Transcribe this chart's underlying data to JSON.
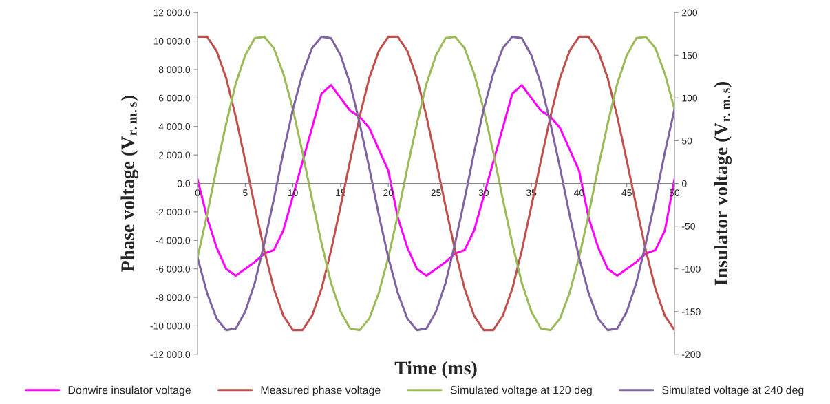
{
  "chart_data": {
    "type": "line",
    "xlabel": "Time (ms)",
    "ylabel": "Phase voltage (V$_{r.m.s}$)",
    "y2label": "Insulator voltage (V$_{r.m.s}$)",
    "x": [
      0,
      1,
      2,
      3,
      4,
      5,
      6,
      7,
      8,
      9,
      10,
      11,
      12,
      13,
      14,
      15,
      16,
      17,
      18,
      19,
      20,
      21,
      22,
      23,
      24,
      25,
      26,
      27,
      28,
      29,
      30,
      31,
      32,
      33,
      34,
      35,
      36,
      37,
      38,
      39,
      40,
      41,
      42,
      43,
      44,
      45,
      46,
      47,
      48,
      49,
      50
    ],
    "series": [
      {
        "name": "Donwire insulator voltage",
        "color": "#ff00ff",
        "axis": "y2",
        "values": [
          5,
          -40,
          -75,
          -100,
          -108,
          -100,
          -92,
          -82,
          -78,
          -55,
          -15,
          25,
          65,
          105,
          115,
          100,
          85,
          78,
          65,
          40,
          15,
          -40,
          -75,
          -100,
          -108,
          -100,
          -92,
          -82,
          -78,
          -55,
          -15,
          25,
          65,
          105,
          115,
          100,
          85,
          78,
          65,
          40,
          15,
          -40,
          -75,
          -100,
          -108,
          -100,
          -92,
          -82,
          -78,
          -55,
          5
        ]
      },
      {
        "name": "Measured phase voltage",
        "color": "#c0504d",
        "values": [
          10300,
          10300,
          9300,
          7400,
          4700,
          1600,
          -1600,
          -4700,
          -7400,
          -9300,
          -10300,
          -10300,
          -9300,
          -7400,
          -4700,
          -1600,
          1600,
          4700,
          7400,
          9300,
          10300,
          10300,
          9300,
          7400,
          4700,
          1600,
          -1600,
          -4700,
          -7400,
          -9300,
          -10300,
          -10300,
          -9300,
          -7400,
          -4700,
          -1600,
          1600,
          4700,
          7400,
          9300,
          10300,
          10300,
          9300,
          7400,
          4700,
          1600,
          -1600,
          -4700,
          -7400,
          -9300,
          -10300
        ]
      },
      {
        "name": "Simulated voltage at 120 deg",
        "color": "#9bbb59",
        "values": [
          -5200,
          -2200,
          1100,
          4200,
          7000,
          9000,
          10200,
          10300,
          9500,
          7700,
          5200,
          2200,
          -1100,
          -4200,
          -7000,
          -9000,
          -10200,
          -10300,
          -9500,
          -7700,
          -5200,
          -2200,
          1100,
          4200,
          7000,
          9000,
          10200,
          10300,
          9500,
          7700,
          5200,
          2200,
          -1100,
          -4200,
          -7000,
          -9000,
          -10200,
          -10300,
          -9500,
          -7700,
          -5200,
          -2200,
          1100,
          4200,
          7000,
          9000,
          10200,
          10300,
          9500,
          7700,
          5200
        ]
      },
      {
        "name": "Simulated voltage at 240 deg",
        "color": "#8064a2",
        "values": [
          -5200,
          -7700,
          -9500,
          -10300,
          -10200,
          -9000,
          -7000,
          -4200,
          -1100,
          2200,
          5200,
          7700,
          9500,
          10300,
          10200,
          9000,
          7000,
          4200,
          1100,
          -2200,
          -5200,
          -7700,
          -9500,
          -10300,
          -10200,
          -9000,
          -7000,
          -4200,
          -1100,
          2200,
          5200,
          7700,
          9500,
          10300,
          10200,
          9000,
          7000,
          4200,
          1100,
          -2200,
          -5200,
          -7700,
          -9500,
          -10300,
          -10200,
          -9000,
          -7000,
          -4200,
          -1100,
          2200,
          5200
        ]
      }
    ],
    "xlim": [
      0,
      50
    ],
    "xticks": [
      0,
      5,
      10,
      15,
      20,
      25,
      30,
      35,
      40,
      45,
      50
    ],
    "ylim": [
      -12000,
      12000
    ],
    "yticks": [
      {
        "value": -12000,
        "label": "-12 000.0"
      },
      {
        "value": -10000,
        "label": "-10 000.0"
      },
      {
        "value": -8000,
        "label": "-8 000.0"
      },
      {
        "value": -6000,
        "label": "-6 000.0"
      },
      {
        "value": -4000,
        "label": "-4 000.0"
      },
      {
        "value": -2000,
        "label": "-2 000.0"
      },
      {
        "value": 0,
        "label": "0.0"
      },
      {
        "value": 2000,
        "label": "2 000.0"
      },
      {
        "value": 4000,
        "label": "4 000.0"
      },
      {
        "value": 6000,
        "label": "6 000.0"
      },
      {
        "value": 8000,
        "label": "8 000.0"
      },
      {
        "value": 10000,
        "label": "10 000.0"
      },
      {
        "value": 12000,
        "label": "12 000.0"
      }
    ],
    "y2lim": [
      -200,
      200
    ],
    "y2ticks": [
      -200,
      -150,
      -100,
      -50,
      0,
      50,
      100,
      150,
      200
    ],
    "legend": "bottom",
    "grid": false,
    "marker": "none",
    "line_style": "solid"
  }
}
